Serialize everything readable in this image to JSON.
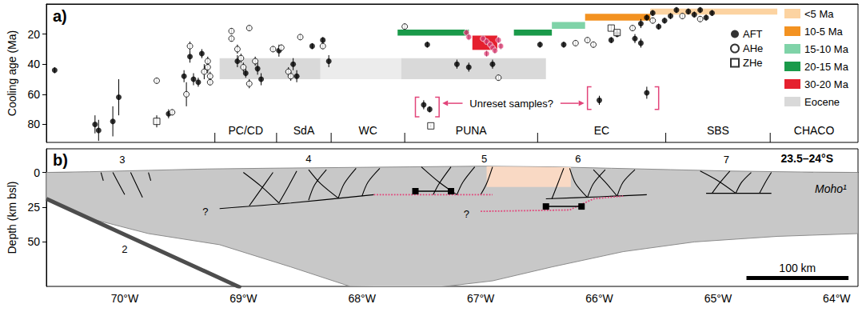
{
  "chart_data": [
    {
      "type": "scatter",
      "panel": "a)",
      "y_label": "Cooling age (Ma)",
      "xlim": [
        -70.66,
        -63.82
      ],
      "ylim": [
        0,
        92
      ],
      "yticks": [
        20,
        40,
        60,
        80
      ],
      "tick_labels": "y",
      "grid": false,
      "legend": "right",
      "series": [
        {
          "name": "AFT",
          "color": "#000000",
          "marker": "circle",
          "x": [
            -70.59,
            -70.25,
            -70.22,
            -70.1,
            -70.05,
            -69.63,
            -69.5,
            -69.45,
            -69.42,
            -69.38,
            -69.35,
            -69.05,
            -68.98,
            -68.88,
            -68.85,
            -68.7,
            -68.58,
            -68.55,
            -68.42,
            -68.33,
            -68.28,
            -67.48,
            -67.43,
            -67.45,
            -67.2,
            -67.1,
            -66.9,
            -66.5,
            -66.3,
            -66.0,
            -65.9,
            -65.85,
            -65.7,
            -65.65,
            -65.65,
            -65.6,
            -65.6,
            -65.55,
            -65.5,
            -65.45,
            -65.4,
            -65.35,
            -65.25,
            -65.2,
            -65.15,
            -65.1,
            -65.05
          ],
          "values": [
            44,
            80,
            84,
            78,
            62,
            73,
            48,
            35,
            50,
            52,
            33,
            38,
            46,
            43,
            50,
            31,
            40,
            48,
            28,
            24,
            38,
            67,
            70,
            27,
            40,
            42,
            40,
            27,
            27,
            64,
            24,
            20,
            23,
            26,
            13,
            59,
            9,
            6,
            15,
            11,
            8,
            4,
            5,
            7,
            4,
            9,
            6
          ],
          "errors": [
            2,
            6,
            7,
            10,
            12,
            3,
            4,
            4,
            4,
            3,
            3,
            4,
            3,
            4,
            4,
            4,
            4,
            4,
            2,
            2,
            4,
            3,
            2,
            2,
            3,
            3,
            3,
            2,
            2,
            3,
            2,
            2,
            3,
            3,
            3,
            4,
            2,
            2,
            2,
            2,
            2,
            2,
            2,
            2,
            2,
            2,
            2
          ]
        },
        {
          "name": "AHe",
          "color": "#000000",
          "marker": "open_circle",
          "x": [
            -69.73,
            -69.6,
            -69.48,
            -69.45,
            -69.33,
            -69.3,
            -69.3,
            -69.28,
            -69.28,
            -69.1,
            -69.1,
            -69.05,
            -69.02,
            -69.0,
            -68.95,
            -68.95,
            -68.9,
            -68.75,
            -68.68,
            -68.62,
            -68.6,
            -68.52,
            -68.33,
            -67.64,
            -66.85,
            -66.2,
            -66.1,
            -66.05,
            -65.72,
            -65.55,
            -65.3,
            -65.15
          ],
          "values": [
            51,
            72,
            60,
            28,
            45,
            42,
            38,
            48,
            52,
            18,
            23,
            30,
            36,
            42,
            53,
            16,
            38,
            30,
            29,
            45,
            48,
            22,
            28,
            15,
            49,
            26,
            24,
            27,
            16,
            11,
            8,
            10
          ],
          "errors": [
            2,
            2,
            8,
            3,
            5,
            4,
            3,
            3,
            2,
            2,
            2,
            3,
            3,
            3,
            3,
            2,
            3,
            2,
            2,
            3,
            3,
            2,
            2,
            2,
            2,
            2,
            2,
            2,
            2,
            2,
            2,
            2
          ]
        },
        {
          "name": "ZHe",
          "color": "#000000",
          "marker": "open_square",
          "x": [
            -69.73,
            -67.42,
            -65.9,
            -65.85
          ],
          "values": [
            78,
            81,
            16,
            19
          ],
          "errors": [
            4,
            1,
            2,
            2
          ]
        },
        {
          "color": "#e2457a",
          "marker": "circle",
          "x": [
            -67.12,
            -67.1,
            -66.98,
            -66.95,
            -66.92,
            -66.9,
            -66.88,
            -66.85,
            -66.83,
            -66.95
          ],
          "values": [
            19,
            22,
            23,
            25,
            27,
            29,
            31,
            24,
            28,
            33
          ],
          "errors": [
            2,
            2,
            2,
            2,
            2,
            2,
            2,
            2,
            2,
            2
          ]
        }
      ],
      "age_bars": [
        {
          "label": "<5 Ma",
          "color": "#fcd3a1",
          "segments": [
            {
              "lon": [
                -65.57,
                -64.5
              ],
              "age": [
                3,
                7
              ]
            }
          ]
        },
        {
          "label": "10-5 Ma",
          "color": "#f39221",
          "segments": [
            {
              "lon": [
                -66.12,
                -65.57
              ],
              "age": [
                6.5,
                11
              ]
            }
          ]
        },
        {
          "label": "15-10 Ma",
          "color": "#7fd3a8",
          "segments": [
            {
              "lon": [
                -66.4,
                -66.12
              ],
              "age": [
                12,
                16.5
              ]
            }
          ]
        },
        {
          "label": "20-15 Ma",
          "color": "#1a9a4a",
          "segments": [
            {
              "lon": [
                -67.7,
                -67.1
              ],
              "age": [
                17,
                21
              ]
            },
            {
              "lon": [
                -66.72,
                -66.4
              ],
              "age": [
                17,
                21
              ]
            }
          ]
        },
        {
          "label": "30-20 Ma",
          "color": "#e5202e",
          "segments": [
            {
              "lon": [
                -67.07,
                -66.86
              ],
              "age": [
                21,
                30.5
              ]
            }
          ]
        },
        {
          "label": "Eocene",
          "color": "#d9d9d9",
          "segments": [
            {
              "lon": [
                -69.2,
                -68.35
              ],
              "age": [
                36,
                50
              ]
            },
            {
              "lon": [
                -68.35,
                -67.67
              ],
              "age": [
                36,
                50
              ],
              "color": "#ececec"
            },
            {
              "lon": [
                -67.67,
                -66.45
              ],
              "age": [
                36,
                50
              ]
            }
          ]
        }
      ],
      "regions": [
        {
          "label": "PC/CD",
          "from": -69.24,
          "to": -68.72
        },
        {
          "label": "SdA",
          "from": -68.72,
          "to": -68.26
        },
        {
          "label": "WC",
          "from": -68.26,
          "to": -67.64
        },
        {
          "label": "PUNA",
          "from": -67.64,
          "to": -66.52
        },
        {
          "label": "EC",
          "from": -66.52,
          "to": -65.44
        },
        {
          "label": "SBS",
          "from": -65.44,
          "to": -64.56
        },
        {
          "label": "CHACO",
          "from": -64.56,
          "to": -63.82
        }
      ],
      "annotation": {
        "text": "Unreset samples?",
        "lon": -66.74,
        "age": 66,
        "color": "#e2457a",
        "brackets": [
          {
            "lon": [
              -67.55,
              -67.35
            ],
            "age": [
              62,
              75
            ]
          },
          {
            "lon": [
              -66.1,
              -65.5
            ],
            "age": [
              55,
              70
            ]
          }
        ]
      }
    },
    {
      "type": "cross_section",
      "panel": "b)",
      "y_label": "Depth (km bsl)",
      "xlim": [
        -70.66,
        -63.82
      ],
      "xticks": [
        {
          "value": -70,
          "label": "70°W"
        },
        {
          "value": -69,
          "label": "69°W"
        },
        {
          "value": -68,
          "label": "68°W"
        },
        {
          "value": -67,
          "label": "67°W"
        },
        {
          "value": -66,
          "label": "66°W"
        },
        {
          "value": -65,
          "label": "65°W"
        },
        {
          "value": -64,
          "label": "64°W"
        }
      ],
      "ylim": [
        -17,
        82
      ],
      "yticks": [
        0,
        25,
        50
      ],
      "grid": false,
      "crust": [
        [
          -70.66,
          0
        ],
        [
          -70.3,
          -0.5
        ],
        [
          -69.8,
          -1.5
        ],
        [
          -69.3,
          -2.5
        ],
        [
          -68.8,
          -3
        ],
        [
          -68.2,
          -3.5
        ],
        [
          -67.6,
          -4
        ],
        [
          -67.0,
          -4.5
        ],
        [
          -66.4,
          -4
        ],
        [
          -65.9,
          -3
        ],
        [
          -65.4,
          -2
        ],
        [
          -64.9,
          -1
        ],
        [
          -64.3,
          -0.3
        ],
        [
          -63.82,
          0
        ],
        [
          -63.82,
          44
        ],
        [
          -64.5,
          46
        ],
        [
          -65.2,
          50
        ],
        [
          -65.8,
          57
        ],
        [
          -66.4,
          68
        ],
        [
          -66.9,
          78
        ],
        [
          -67.4,
          83
        ],
        [
          -68.1,
          82
        ],
        [
          -68.6,
          68
        ],
        [
          -69.2,
          52
        ],
        [
          -69.8,
          44
        ],
        [
          -70.3,
          33
        ],
        [
          -70.66,
          19
        ]
      ],
      "highlight_zone": [
        [
          -66.95,
          -4.4
        ],
        [
          -66.24,
          -3.8
        ],
        [
          -66.24,
          10.5
        ],
        [
          -66.95,
          10.5
        ]
      ],
      "slab": [
        [
          -70.66,
          19
        ],
        [
          -69.02,
          83
        ]
      ],
      "faults": [
        [
          [
            -70.2,
            0
          ],
          [
            -70.18,
            6
          ]
        ],
        [
          [
            -70.1,
            0
          ],
          [
            -70.05,
            8
          ],
          [
            -70.0,
            16
          ]
        ],
        [
          [
            -69.95,
            0
          ],
          [
            -69.9,
            9
          ],
          [
            -69.85,
            18
          ]
        ],
        [
          [
            -69.8,
            0
          ],
          [
            -69.78,
            6
          ]
        ],
        [
          [
            -69.2,
            26
          ],
          [
            -68.6,
            22
          ],
          [
            -67.9,
            16
          ]
        ],
        [
          [
            -68.95,
            24
          ],
          [
            -68.85,
            12
          ],
          [
            -68.75,
            0
          ]
        ],
        [
          [
            -68.7,
            22
          ],
          [
            -68.62,
            10
          ],
          [
            -68.55,
            -1
          ]
        ],
        [
          [
            -68.7,
            22
          ],
          [
            -68.85,
            10
          ],
          [
            -69.0,
            0
          ]
        ],
        [
          [
            -68.45,
            20
          ],
          [
            -68.4,
            9
          ],
          [
            -68.3,
            -2
          ]
        ],
        [
          [
            -68.2,
            18.5
          ],
          [
            -68.15,
            8
          ],
          [
            -68.05,
            -3
          ]
        ],
        [
          [
            -68.2,
            18.5
          ],
          [
            -68.35,
            8
          ],
          [
            -68.45,
            -2
          ]
        ],
        [
          [
            -68.0,
            17
          ],
          [
            -67.95,
            7
          ],
          [
            -67.85,
            -3
          ]
        ],
        [
          [
            -67.4,
            16
          ],
          [
            -67.35,
            8
          ],
          [
            -67.25,
            -4
          ]
        ],
        [
          [
            -67.2,
            16
          ],
          [
            -67.15,
            7
          ],
          [
            -67.05,
            -4
          ]
        ],
        [
          [
            -67.2,
            16
          ],
          [
            -67.35,
            7
          ],
          [
            -67.5,
            -4
          ]
        ],
        [
          [
            -67.0,
            16
          ],
          [
            -66.95,
            8
          ],
          [
            -66.9,
            -4
          ]
        ],
        [
          [
            -66.45,
            19
          ],
          [
            -66.0,
            17.5
          ],
          [
            -65.6,
            16
          ]
        ],
        [
          [
            -66.4,
            19
          ],
          [
            -66.35,
            8
          ],
          [
            -66.3,
            -3
          ]
        ],
        [
          [
            -66.1,
            18
          ],
          [
            -66.05,
            8
          ],
          [
            -65.95,
            -2
          ]
        ],
        [
          [
            -66.1,
            18
          ],
          [
            -66.2,
            8
          ],
          [
            -66.25,
            -3
          ]
        ],
        [
          [
            -65.85,
            17
          ],
          [
            -65.8,
            7
          ],
          [
            -65.7,
            -2
          ]
        ],
        [
          [
            -65.85,
            17
          ],
          [
            -65.95,
            7
          ],
          [
            -66.05,
            -2
          ]
        ],
        [
          [
            -65.1,
            15
          ],
          [
            -64.8,
            15
          ],
          [
            -64.55,
            15
          ]
        ],
        [
          [
            -65.05,
            15
          ],
          [
            -64.98,
            7
          ],
          [
            -64.9,
            -1
          ]
        ],
        [
          [
            -64.85,
            15
          ],
          [
            -64.8,
            7
          ],
          [
            -64.72,
            0
          ]
        ],
        [
          [
            -64.85,
            15
          ],
          [
            -65.0,
            6
          ],
          [
            -65.15,
            -1
          ]
        ],
        [
          [
            -64.65,
            15
          ],
          [
            -64.6,
            7
          ],
          [
            -64.55,
            0
          ]
        ]
      ],
      "detachments": [
        [
          [
            -67.9,
            16
          ],
          [
            -67.2,
            16
          ],
          [
            -66.9,
            16
          ]
        ],
        [
          [
            -67.0,
            28
          ],
          [
            -66.25,
            27
          ],
          [
            -66.05,
            19
          ],
          [
            -65.8,
            17
          ]
        ]
      ],
      "arrows": [
        {
          "lon": [
            -67.55,
            -67.25
          ],
          "depth": 13.5
        },
        {
          "lon": [
            -66.45,
            -66.15
          ],
          "depth": 24.5
        }
      ],
      "labels": [
        {
          "text": "3",
          "lon": -70.02,
          "depth": -9
        },
        {
          "text": "4",
          "lon": -68.45,
          "depth": -10
        },
        {
          "text": "5",
          "lon": -66.97,
          "depth": -10
        },
        {
          "text": "6",
          "lon": -66.18,
          "depth": -10
        },
        {
          "text": "7",
          "lon": -64.93,
          "depth": -9
        },
        {
          "text": "2",
          "lon": -70.0,
          "depth": 55
        },
        {
          "text": "?",
          "lon": -69.32,
          "depth": 28
        },
        {
          "text": "?",
          "lon": -67.12,
          "depth": 30
        }
      ],
      "moho_label": {
        "text": "Moho¹",
        "lon": -64.05,
        "depth": 12
      },
      "region_label": {
        "text": "23.5–24°S",
        "lon": -64.25,
        "depth": -10
      },
      "scale_bar": {
        "label": "100 km",
        "lon": [
          -64.76,
          -63.9
        ],
        "depth": 76
      }
    }
  ]
}
